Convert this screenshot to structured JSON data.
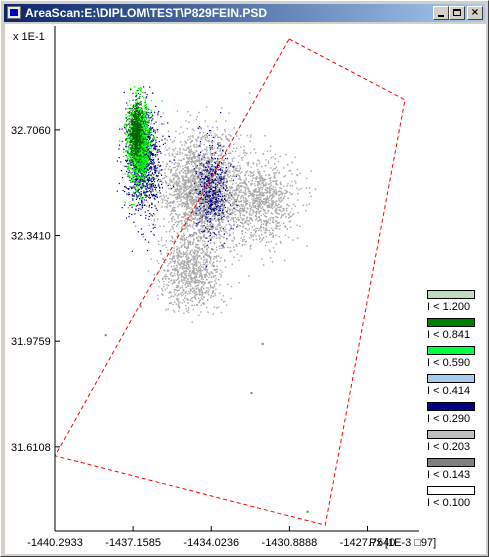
{
  "window": {
    "title": "AreaScan:E:\\DIPLOM\\TEST\\P829FEIN.PSD",
    "app_icon": "app-window-icon",
    "buttons": {
      "minimize_icon": "minimize-icon",
      "maximize_icon": "maximize-icon",
      "close_label": "×"
    }
  },
  "colors": {
    "titlebar_start": "#0a246a",
    "titlebar_end": "#a6caf0",
    "boundary": "#ff0000"
  },
  "chart_data": {
    "type": "scatter",
    "y_multiplier_label": "x 1E-1",
    "x_unit_label": "Px [1E-3 □97]",
    "x_ticks": [
      -1440.2933,
      -1437.1585,
      -1434.0236,
      -1430.8888,
      -1427.754
    ],
    "x_tick_labels": [
      "-1440.2933",
      "-1437.1585",
      "-1434.0236",
      "-1430.8888",
      "-1427.7540"
    ],
    "y_ticks": [
      32.706,
      32.341,
      31.9759,
      31.6108
    ],
    "y_tick_labels": [
      "32.7060",
      "32.3410",
      "31.9759",
      "31.6108"
    ],
    "xlim": [
      -1440.2933,
      -1426.25
    ],
    "ylim": [
      31.32,
      33.065
    ],
    "grid": false,
    "legend_position": "right-bottom",
    "boundary_polygon": [
      [
        -1430.9,
        33.02
      ],
      [
        -1426.25,
        32.81
      ],
      [
        -1429.45,
        31.34
      ],
      [
        -1440.29,
        31.58
      ]
    ],
    "clusters": [
      {
        "name": "grey-cloud-main",
        "cx": -1434.4,
        "cy": 32.5,
        "sx": 1.6,
        "sy": 0.18,
        "count": 2200,
        "color": "#a8a8a8",
        "size": 1.4
      },
      {
        "name": "grey-cloud-right",
        "cx": -1432.0,
        "cy": 32.46,
        "sx": 1.4,
        "sy": 0.13,
        "count": 900,
        "color": "#a8a8a8",
        "size": 1.4
      },
      {
        "name": "grey-cloud-low",
        "cx": -1434.9,
        "cy": 32.22,
        "sx": 1.2,
        "sy": 0.12,
        "count": 800,
        "color": "#a8a8a8",
        "size": 1.4
      },
      {
        "name": "navy-band",
        "cx": -1436.8,
        "cy": 32.6,
        "sx": 0.7,
        "sy": 0.16,
        "count": 1200,
        "color": "#000080",
        "size": 1.2
      },
      {
        "name": "navy-streak",
        "cx": -1434.0,
        "cy": 32.5,
        "sx": 0.7,
        "sy": 0.14,
        "count": 500,
        "color": "#000080",
        "size": 1.2
      },
      {
        "name": "bright-green-core",
        "cx": -1436.95,
        "cy": 32.66,
        "sx": 0.45,
        "sy": 0.13,
        "count": 1100,
        "color": "#00ff00",
        "size": 1.3
      },
      {
        "name": "dark-green-core",
        "cx": -1437.05,
        "cy": 32.7,
        "sx": 0.28,
        "sy": 0.09,
        "count": 700,
        "color": "#006400",
        "size": 1.2
      }
    ],
    "outliers": [
      {
        "x": -1438.3,
        "y": 32.0,
        "color": "#808080"
      },
      {
        "x": -1432.0,
        "y": 31.97,
        "color": "#808080"
      },
      {
        "x": -1432.45,
        "y": 31.8,
        "color": "#808080"
      },
      {
        "x": -1436.9,
        "y": 32.1,
        "color": "#808080"
      },
      {
        "x": -1430.2,
        "y": 31.39,
        "color": "#00c000"
      }
    ],
    "legend": [
      {
        "label": "I < 1.200",
        "color": "#c0dcc0"
      },
      {
        "label": "I < 0.841",
        "color": "#008000"
      },
      {
        "label": "I < 0.590",
        "color": "#00ff40"
      },
      {
        "label": "I < 0.414",
        "color": "#a6caf0"
      },
      {
        "label": "I < 0.290",
        "color": "#000080"
      },
      {
        "label": "I < 0.203",
        "color": "#c0c0c0"
      },
      {
        "label": "I < 0.143",
        "color": "#808080"
      },
      {
        "label": "I < 0.100",
        "color": "#ffffff"
      }
    ]
  }
}
